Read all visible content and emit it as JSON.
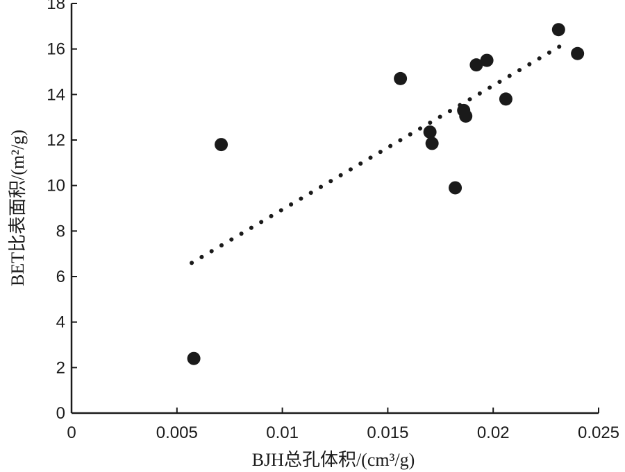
{
  "chart_data": {
    "type": "scatter",
    "title": "",
    "xlabel": "BJH总孔体积/(cm³/g)",
    "ylabel": "BET比表面积/(m²/g)",
    "xlim": [
      0,
      0.025
    ],
    "ylim": [
      0,
      18
    ],
    "x_ticks": [
      {
        "value": 0,
        "label": "0"
      },
      {
        "value": 0.005,
        "label": "0.005"
      },
      {
        "value": 0.01,
        "label": "0.01"
      },
      {
        "value": 0.015,
        "label": "0.015"
      },
      {
        "value": 0.02,
        "label": "0.02"
      },
      {
        "value": 0.025,
        "label": "0.025"
      }
    ],
    "y_ticks": [
      {
        "value": 0,
        "label": "0"
      },
      {
        "value": 2,
        "label": "2"
      },
      {
        "value": 4,
        "label": "4"
      },
      {
        "value": 6,
        "label": "6"
      },
      {
        "value": 8,
        "label": "8"
      },
      {
        "value": 10,
        "label": "10"
      },
      {
        "value": 12,
        "label": "12"
      },
      {
        "value": 14,
        "label": "14"
      },
      {
        "value": 16,
        "label": "16"
      },
      {
        "value": 18,
        "label": "18"
      }
    ],
    "points": [
      {
        "x": 0.0058,
        "y": 2.4
      },
      {
        "x": 0.0071,
        "y": 11.8
      },
      {
        "x": 0.0156,
        "y": 14.7
      },
      {
        "x": 0.017,
        "y": 12.35
      },
      {
        "x": 0.0171,
        "y": 11.85
      },
      {
        "x": 0.0182,
        "y": 9.9
      },
      {
        "x": 0.0186,
        "y": 13.3
      },
      {
        "x": 0.0187,
        "y": 13.05
      },
      {
        "x": 0.0192,
        "y": 15.3
      },
      {
        "x": 0.0197,
        "y": 15.5
      },
      {
        "x": 0.0206,
        "y": 13.8
      },
      {
        "x": 0.0231,
        "y": 16.85
      },
      {
        "x": 0.024,
        "y": 15.8
      }
    ],
    "trendline": {
      "style": "dotted",
      "x": [
        0.0057,
        0.0235
      ],
      "y": [
        6.6,
        16.3
      ]
    },
    "grid": false,
    "legend": "none",
    "colors": {
      "marker": "#1a1a1a",
      "axis": "#1a1a1a",
      "trendline": "#1a1a1a"
    }
  }
}
